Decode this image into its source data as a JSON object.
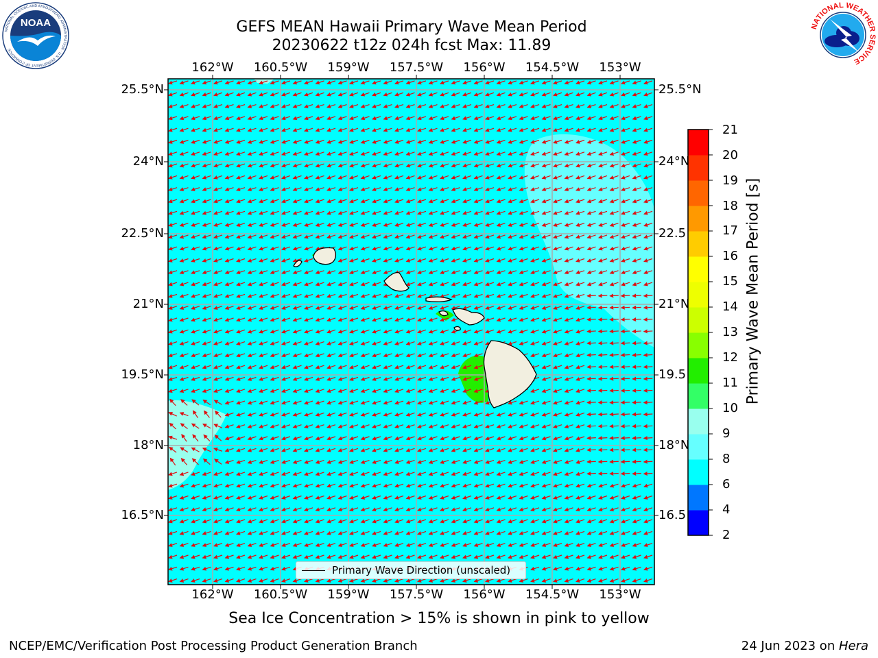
{
  "header": {
    "title": "GEFS MEAN Hawaii Primary Wave Mean Period",
    "subtitle": "20230622 t12z 024h fcst   Max: 11.89"
  },
  "logos": {
    "noaa_text": "NOAA",
    "noaa_ring": "NATIONAL OCEANIC AND ATMOSPHERIC ADMINISTRATION · U.S. DEPARTMENT OF COMMERCE",
    "nws_ring": "NATIONAL WEATHER SERVICE"
  },
  "map": {
    "lon_labels": [
      "162°W",
      "160.5°W",
      "159°W",
      "157.5°W",
      "156°W",
      "154.5°W",
      "153°W"
    ],
    "lat_labels": [
      "25.5°N",
      "24°N",
      "22.5°N",
      "21°N",
      "19.5°N",
      "18°N",
      "16.5°N"
    ],
    "lat_labels_right": [
      "25.5°N",
      "24°N",
      "22.5",
      "21°N",
      "19.5",
      "18°N",
      "16.5"
    ],
    "legend_label": "Primary Wave Direction (unscaled)",
    "colors": {
      "ocean": "#00ffff",
      "swell_light": "#66ffff",
      "swell_lighter": "#99ffee",
      "land": "#f2efe0",
      "arrows": "#dd1111",
      "gridlines": "#aaaaaa"
    }
  },
  "colorbar": {
    "label": "Primary Wave Mean Period [s]",
    "ticks": [
      "21",
      "20",
      "19",
      "18",
      "17",
      "16",
      "15",
      "14",
      "13",
      "12",
      "11",
      "10",
      "9",
      "8",
      "6",
      "4",
      "2"
    ],
    "levels": [
      2,
      4,
      6,
      8,
      9,
      10,
      11,
      12,
      13,
      14,
      15,
      16,
      17,
      18,
      19,
      20,
      21
    ],
    "colors": [
      "#0000ff",
      "#0077ff",
      "#00ffff",
      "#66ffff",
      "#99ffee",
      "#33ff66",
      "#22ee00",
      "#88ff00",
      "#ccff00",
      "#eeff00",
      "#ffff00",
      "#ffcc00",
      "#ff9900",
      "#ff6600",
      "#ff3300",
      "#ff0000"
    ]
  },
  "footer": {
    "caption": "Sea Ice Concentration > 15% is shown in pink to yellow",
    "left": "NCEP/EMC/Verification Post Processing Product Generation Branch",
    "right_prefix": "24 Jun 2023 on ",
    "right_host": "Hera"
  }
}
